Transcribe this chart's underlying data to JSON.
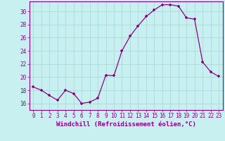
{
  "hours": [
    0,
    1,
    2,
    3,
    4,
    5,
    6,
    7,
    8,
    9,
    10,
    11,
    12,
    13,
    14,
    15,
    16,
    17,
    18,
    19,
    20,
    21,
    22,
    23
  ],
  "values": [
    18.5,
    18.0,
    17.2,
    16.5,
    18.0,
    17.5,
    16.0,
    16.2,
    16.8,
    20.3,
    20.2,
    24.0,
    26.2,
    27.8,
    29.2,
    30.2,
    31.0,
    31.0,
    30.8,
    29.0,
    28.8,
    22.3,
    20.8,
    20.1
  ],
  "line_color": "#8B008B",
  "marker_color": "#8B008B",
  "bg_color": "#c8f0f0",
  "grid_color": "#b0dede",
  "xlabel": "Windchill (Refroidissement éolien,°C)",
  "ylim": [
    15.0,
    31.5
  ],
  "yticks": [
    16,
    18,
    20,
    22,
    24,
    26,
    28,
    30
  ],
  "xticks": [
    0,
    1,
    2,
    3,
    4,
    5,
    6,
    7,
    8,
    9,
    10,
    11,
    12,
    13,
    14,
    15,
    16,
    17,
    18,
    19,
    20,
    21,
    22,
    23
  ],
  "tick_fontsize": 5.5,
  "label_fontsize": 6.5
}
